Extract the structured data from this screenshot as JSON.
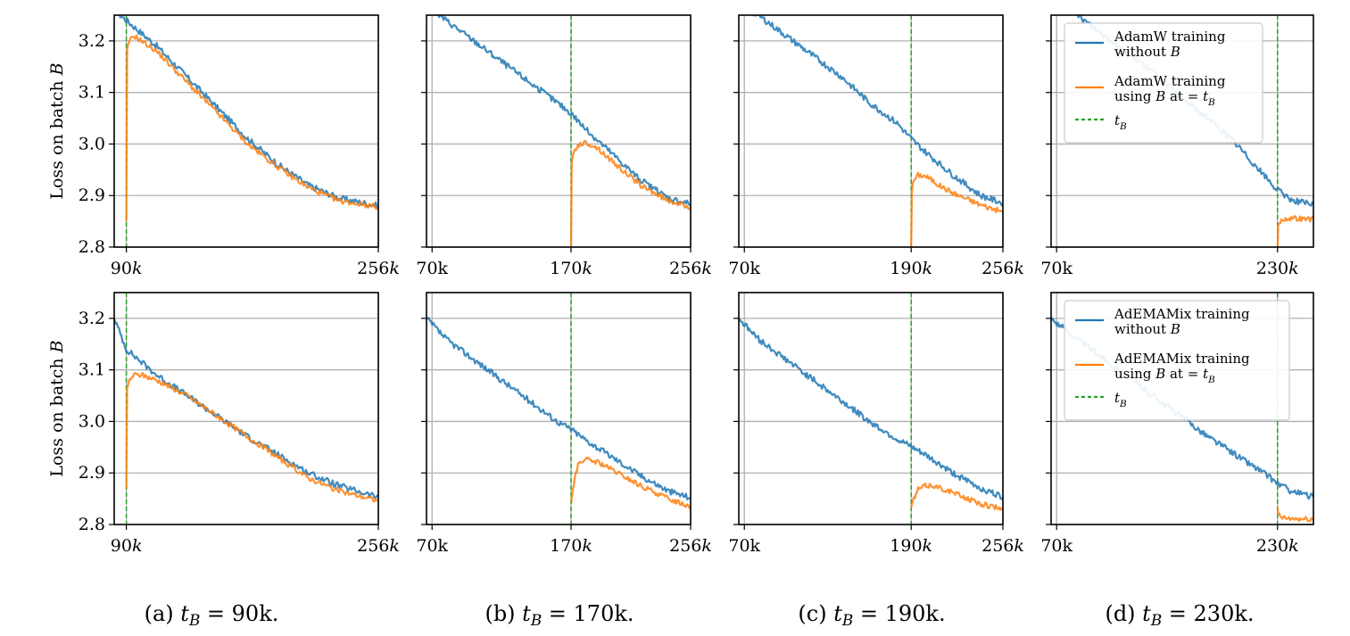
{
  "chart_data": {
    "type": "line",
    "y_axis_label": "Loss on batch B",
    "ylim": [
      2.8,
      3.25
    ],
    "y_ticks": [
      "2.8",
      "2.9",
      "3.0",
      "3.1",
      "3.2"
    ],
    "grid": true,
    "colors": {
      "without": "#1f77b4",
      "with": "#ff7f0e",
      "tB": "#2ca02c"
    },
    "rows": [
      {
        "optimizer": "AdamW",
        "legend": {
          "placement": "top-right of panel (d)",
          "entries": [
            {
              "line1": "AdamW training",
              "line2": "without B"
            },
            {
              "line1": "AdamW training",
              "line2": "using B at t = tB"
            },
            {
              "line1": "tB",
              "line2": ""
            }
          ]
        },
        "panels": [
          {
            "tB": 90,
            "xlim": [
              82,
              256
            ],
            "x_tick_labels": [
              "90k",
              "256k"
            ],
            "x_tick_values": [
              90,
              256
            ],
            "without_B": {
              "x": [
                82,
                90,
                110,
                130,
                150,
                170,
                190,
                210,
                230,
                256
              ],
              "y": [
                3.26,
                3.24,
                3.19,
                3.13,
                3.07,
                3.01,
                2.96,
                2.92,
                2.895,
                2.88
              ]
            },
            "with_B": {
              "x": [
                90,
                90.5,
                92,
                95,
                100,
                110,
                130,
                150,
                170,
                190,
                210,
                230,
                256
              ],
              "y": [
                2.85,
                3.18,
                3.2,
                3.21,
                3.2,
                3.18,
                3.12,
                3.06,
                3.0,
                2.955,
                2.915,
                2.89,
                2.878
              ]
            }
          },
          {
            "tB": 170,
            "xlim": [
              66,
              256
            ],
            "x_tick_labels": [
              "70k",
              "170k",
              "256k"
            ],
            "x_tick_values": [
              70,
              170,
              256
            ],
            "without_B": {
              "x": [
                66,
                80,
                100,
                120,
                140,
                160,
                170,
                180,
                200,
                220,
                240,
                256
              ],
              "y": [
                3.27,
                3.24,
                3.2,
                3.16,
                3.12,
                3.08,
                3.06,
                3.03,
                2.98,
                2.93,
                2.895,
                2.884
              ]
            },
            "with_B": {
              "x": [
                170,
                170.5,
                172,
                175,
                180,
                185,
                190,
                200,
                220,
                240,
                256
              ],
              "y": [
                2.8,
                2.96,
                2.985,
                2.998,
                3.002,
                2.998,
                2.99,
                2.965,
                2.92,
                2.89,
                2.877
              ]
            }
          },
          {
            "tB": 190,
            "xlim": [
              66,
              256
            ],
            "x_tick_labels": [
              "70k",
              "190k",
              "256k"
            ],
            "x_tick_values": [
              70,
              190,
              256
            ],
            "without_B": {
              "x": [
                66,
                80,
                100,
                120,
                140,
                160,
                180,
                190,
                200,
                220,
                240,
                256
              ],
              "y": [
                3.27,
                3.25,
                3.21,
                3.17,
                3.13,
                3.08,
                3.04,
                3.01,
                2.985,
                2.94,
                2.9,
                2.885
              ]
            },
            "with_B": {
              "x": [
                190,
                190.5,
                192,
                195,
                200,
                205,
                210,
                220,
                240,
                256
              ],
              "y": [
                2.8,
                2.91,
                2.93,
                2.94,
                2.938,
                2.93,
                2.92,
                2.905,
                2.882,
                2.868
              ]
            }
          },
          {
            "tB": 230,
            "xlim": [
              66,
              256
            ],
            "x_tick_labels": [
              "70k",
              "230k"
            ],
            "x_tick_values": [
              70,
              230
            ],
            "without_B": {
              "x": [
                66,
                80,
                100,
                120,
                140,
                160,
                180,
                200,
                220,
                230,
                240,
                256
              ],
              "y": [
                3.27,
                3.26,
                3.22,
                3.18,
                3.14,
                3.09,
                3.05,
                3.0,
                2.94,
                2.91,
                2.892,
                2.882
              ]
            },
            "with_B": {
              "x": [
                230,
                230.5,
                232,
                235,
                240,
                248,
                256
              ],
              "y": [
                2.8,
                2.84,
                2.85,
                2.855,
                2.856,
                2.855,
                2.854
              ]
            }
          }
        ]
      },
      {
        "optimizer": "AdEMAMix",
        "legend": {
          "placement": "top-right of panel (d)",
          "entries": [
            {
              "line1": "AdEMAMix training",
              "line2": "without B"
            },
            {
              "line1": "AdEMAMix training",
              "line2": "using B at t = tB"
            },
            {
              "line1": "tB",
              "line2": ""
            }
          ]
        },
        "panels": [
          {
            "tB": 90,
            "xlim": [
              82,
              256
            ],
            "x_tick_labels": [
              "90k",
              "256k"
            ],
            "x_tick_values": [
              90,
              256
            ],
            "without_B": {
              "x": [
                82,
                90,
                110,
                130,
                150,
                170,
                190,
                210,
                230,
                256
              ],
              "y": [
                3.2,
                3.14,
                3.09,
                3.05,
                3.01,
                2.97,
                2.935,
                2.9,
                2.875,
                2.853
              ]
            },
            "with_B": {
              "x": [
                90,
                90.5,
                92,
                95,
                100,
                110,
                130,
                150,
                170,
                190,
                210,
                230,
                256
              ],
              "y": [
                2.87,
                3.06,
                3.08,
                3.09,
                3.09,
                3.08,
                3.05,
                3.01,
                2.97,
                2.93,
                2.89,
                2.865,
                2.846
              ]
            }
          },
          {
            "tB": 170,
            "xlim": [
              66,
              256
            ],
            "x_tick_labels": [
              "70k",
              "170k",
              "256k"
            ],
            "x_tick_values": [
              70,
              170,
              256
            ],
            "without_B": {
              "x": [
                66,
                80,
                100,
                120,
                140,
                160,
                170,
                180,
                200,
                220,
                240,
                256
              ],
              "y": [
                3.2,
                3.16,
                3.12,
                3.08,
                3.04,
                3.0,
                2.985,
                2.965,
                2.93,
                2.895,
                2.865,
                2.852
              ]
            },
            "with_B": {
              "x": [
                170,
                170.5,
                172,
                175,
                178,
                182,
                190,
                200,
                220,
                240,
                256
              ],
              "y": [
                2.843,
                2.85,
                2.88,
                2.915,
                2.925,
                2.925,
                2.92,
                2.905,
                2.875,
                2.85,
                2.835
              ]
            }
          },
          {
            "tB": 190,
            "xlim": [
              66,
              256
            ],
            "x_tick_labels": [
              "70k",
              "190k",
              "256k"
            ],
            "x_tick_values": [
              70,
              190,
              256
            ],
            "without_B": {
              "x": [
                66,
                80,
                100,
                120,
                140,
                160,
                180,
                190,
                200,
                220,
                240,
                256
              ],
              "y": [
                3.2,
                3.16,
                3.12,
                3.08,
                3.04,
                3.0,
                2.965,
                2.95,
                2.935,
                2.9,
                2.87,
                2.853
              ]
            },
            "with_B": {
              "x": [
                190,
                190.5,
                192,
                195,
                200,
                205,
                210,
                220,
                240,
                256
              ],
              "y": [
                2.835,
                2.838,
                2.85,
                2.868,
                2.875,
                2.876,
                2.872,
                2.862,
                2.84,
                2.83
              ]
            }
          },
          {
            "tB": 230,
            "xlim": [
              66,
              256
            ],
            "x_tick_labels": [
              "70k",
              "230k"
            ],
            "x_tick_values": [
              70,
              230
            ],
            "without_B": {
              "x": [
                66,
                80,
                100,
                120,
                140,
                160,
                180,
                200,
                220,
                230,
                240,
                256
              ],
              "y": [
                3.2,
                3.17,
                3.13,
                3.09,
                3.05,
                3.01,
                2.97,
                2.935,
                2.9,
                2.88,
                2.865,
                2.853
              ]
            },
            "with_B": {
              "x": [
                230,
                230.5,
                232,
                235,
                240,
                248,
                256
              ],
              "y": [
                2.83,
                2.82,
                2.815,
                2.812,
                2.811,
                2.81,
                2.81
              ]
            }
          }
        ]
      }
    ],
    "captions": [
      "(a) tB = 90k.",
      "(b) tB = 170k.",
      "(c) tB = 190k.",
      "(d) tB = 230k."
    ]
  }
}
